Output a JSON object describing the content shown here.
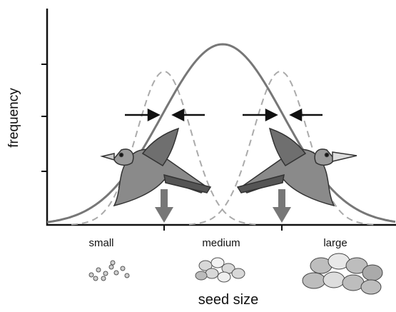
{
  "y_axis_label": "frequency",
  "x_axis_label": "seed size",
  "categories": [
    "small",
    "medium",
    "large"
  ]
}
